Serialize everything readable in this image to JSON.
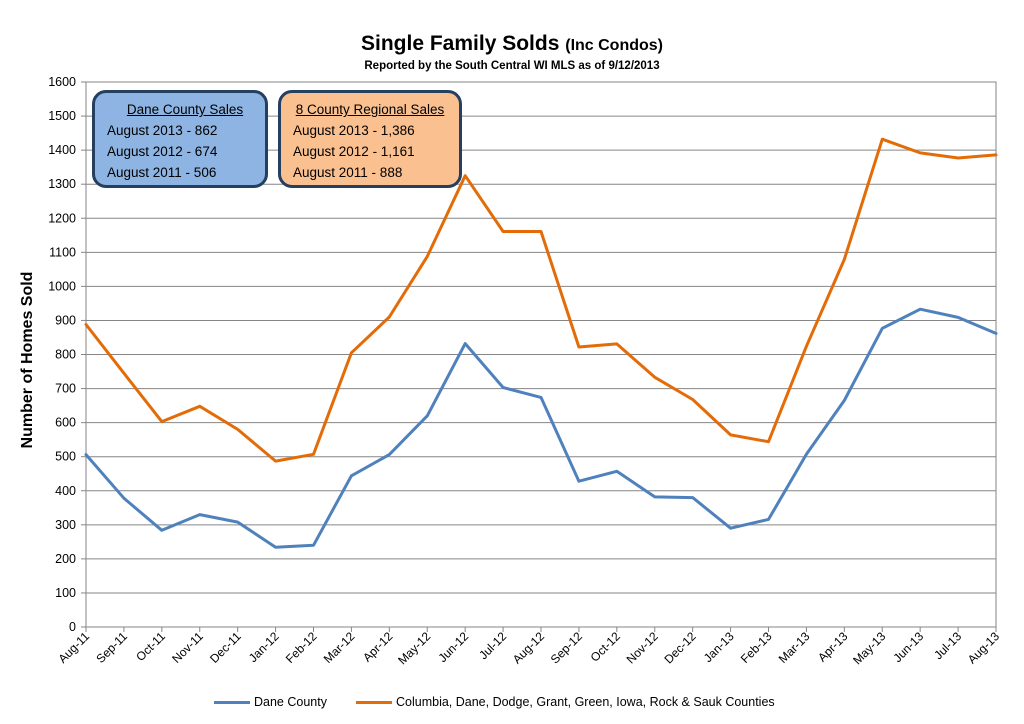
{
  "chart_data": {
    "type": "line",
    "title": "Single Family Solds",
    "title_suffix": "(Inc Condos)",
    "subtitle": "Reported by the South Central WI MLS as of 9/12/2013",
    "xlabel": "",
    "ylabel": "Number of Homes Sold",
    "ylim": [
      0,
      1600
    ],
    "yticks": [
      0,
      100,
      200,
      300,
      400,
      500,
      600,
      700,
      800,
      900,
      1000,
      1100,
      1200,
      1300,
      1400,
      1500,
      1600
    ],
    "grid": true,
    "legend": "bottom",
    "categories": [
      "Aug-11",
      "Sep-11",
      "Oct-11",
      "Nov-11",
      "Dec-11",
      "Jan-12",
      "Feb-12",
      "Mar-12",
      "Apr-12",
      "May-12",
      "Jun-12",
      "Jul-12",
      "Aug-12",
      "Sep-12",
      "Oct-12",
      "Nov-12",
      "Dec-12",
      "Jan-13",
      "Feb-13",
      "Mar-13",
      "Apr-13",
      "May-13",
      "Jun-13",
      "Jul-13",
      "Aug-13"
    ],
    "series": [
      {
        "name": "Dane County",
        "color": "#4f81bd",
        "values": [
          506,
          378,
          284,
          330,
          308,
          234,
          240,
          444,
          506,
          620,
          832,
          703,
          674,
          428,
          457,
          382,
          380,
          290,
          316,
          507,
          665,
          877,
          933,
          909,
          862
        ]
      },
      {
        "name": "Columbia, Dane, Dodge, Grant, Green, Iowa, Rock & Sauk Counties",
        "color": "#e36c09",
        "values": [
          888,
          745,
          603,
          648,
          580,
          487,
          507,
          805,
          910,
          1088,
          1325,
          1161,
          1161,
          822,
          831,
          733,
          668,
          564,
          544,
          824,
          1079,
          1432,
          1392,
          1377,
          1386
        ]
      }
    ]
  },
  "boxes": {
    "dane": {
      "header": "Dane  County Sales",
      "lines": [
        "August 2013 - 862",
        "August 2012 - 674",
        "August 2011 - 506"
      ],
      "color": "#8db4e2"
    },
    "region": {
      "header": "8 County  Regional Sales",
      "lines": [
        "August 2013  -  1,386",
        "August 2012  -  1,161",
        "August 2011  -  888"
      ],
      "color": "#fac090"
    }
  }
}
